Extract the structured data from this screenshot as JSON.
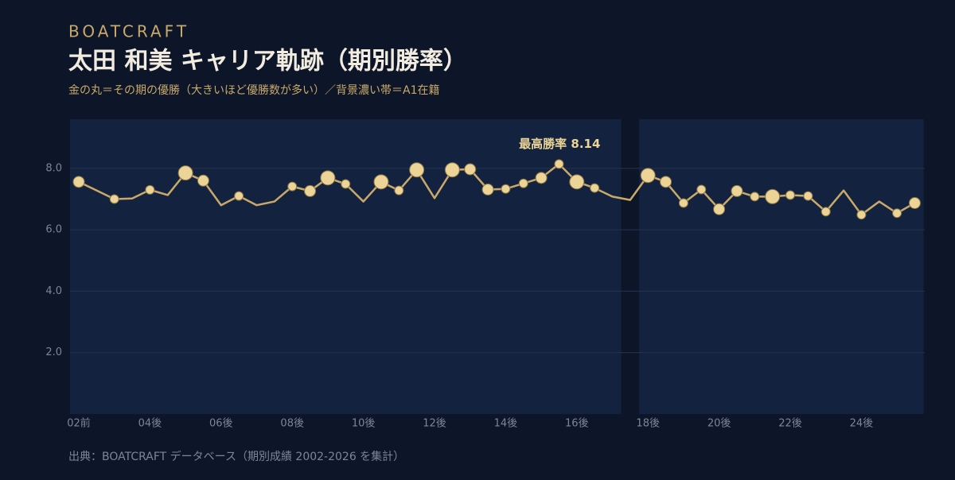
{
  "header": {
    "brand": "BOATCRAFT",
    "title": "太田 和美 キャリア軌跡（期別勝率）",
    "subtitle": "金の丸＝その期の優勝（大きいほど優勝数が多い）／背景濃い帯＝A1在籍"
  },
  "chart_data": {
    "type": "line",
    "color": "#c9a96a",
    "marker_color": "#ecd496",
    "annotation": "最高勝率",
    "categories": [
      "02前",
      null,
      null,
      null,
      "04後",
      null,
      null,
      null,
      "06後",
      null,
      null,
      null,
      "08後",
      null,
      null,
      null,
      "10後",
      null,
      null,
      null,
      "12後",
      null,
      null,
      null,
      "14後",
      null,
      null,
      null,
      "16後",
      null,
      null,
      null,
      "18後",
      null,
      null,
      null,
      "20後",
      null,
      null,
      null,
      "22後",
      null,
      null,
      null,
      "24後",
      null,
      null,
      null
    ],
    "values": [
      7.56,
      7.28,
      7.0,
      7.02,
      7.3,
      7.13,
      7.85,
      7.6,
      6.8,
      7.1,
      6.8,
      6.92,
      7.41,
      7.26,
      7.69,
      7.49,
      6.92,
      7.56,
      7.28,
      7.95,
      7.03,
      7.95,
      7.97,
      7.31,
      7.33,
      7.51,
      7.69,
      8.14,
      7.56,
      7.36,
      7.08,
      6.97,
      7.77,
      7.56,
      6.87,
      7.31,
      6.67,
      7.26,
      7.08,
      7.08,
      7.13,
      7.1,
      6.59,
      7.28,
      6.49,
      6.92,
      6.54,
      6.87
    ],
    "wins": [
      2,
      null,
      1,
      null,
      1,
      null,
      3,
      2,
      null,
      1,
      null,
      null,
      1,
      2,
      3,
      1,
      null,
      3,
      1,
      3,
      null,
      3,
      2,
      2,
      1,
      1,
      2,
      1,
      3,
      1,
      null,
      null,
      3,
      2,
      1,
      1,
      2,
      2,
      1,
      3,
      1,
      1,
      1,
      null,
      1,
      null,
      1,
      2
    ],
    "a1_bands": [
      [
        0,
        30
      ],
      [
        32,
        47
      ]
    ],
    "ylim": [
      0,
      9.6
    ],
    "yticks": [
      {
        "value": 2,
        "label": "2.0"
      },
      {
        "value": 4,
        "label": "4.0"
      },
      {
        "value": 6,
        "label": "6.0"
      },
      {
        "value": 8,
        "label": "8.0"
      }
    ],
    "grid": true
  },
  "footer": {
    "source": "出典：BOATCRAFT データベース（期別成績 2002-2026 を集計）"
  }
}
